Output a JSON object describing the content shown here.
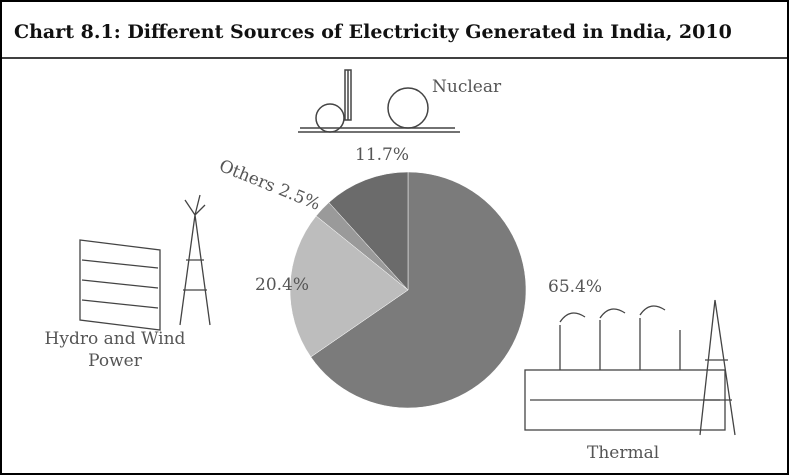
{
  "chart_data": {
    "type": "pie",
    "title": "Chart 8.1: Different Sources of Electricity Generated in India, 2010",
    "categories": [
      "Thermal",
      "Hydro and Wind Power",
      "Others",
      "Nuclear"
    ],
    "values": [
      65.4,
      20.4,
      2.5,
      11.7
    ],
    "value_labels": [
      "65.4%",
      "20.4%",
      "2.5%",
      "11.7%"
    ],
    "colors": [
      "#7b7b7b",
      "#bdbdbd",
      "#9a9a9a",
      "#6b6b6b"
    ],
    "start_angle": 0,
    "direction": "clockwise"
  }
}
